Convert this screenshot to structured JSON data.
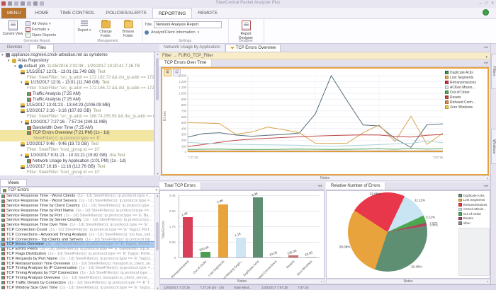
{
  "window": {
    "title": "SteelCentral Packet Analyzer Plus",
    "minimize": "–",
    "restore": "□",
    "close": "×"
  },
  "ribbon": {
    "tabs": [
      {
        "label": "MENU",
        "style": "menu"
      },
      {
        "label": "HOME"
      },
      {
        "label": "TIME CONTROL"
      },
      {
        "label": "POLICIES/ALERTS"
      },
      {
        "label": "REPORTING",
        "active": true
      },
      {
        "label": "REMOTE"
      }
    ],
    "generate_group": {
      "label": "Generate Report",
      "current_view": "Current View",
      "all_views": "All Views",
      "formats": "Formats",
      "open_reports": "Open Reports"
    },
    "management_group": {
      "label": "Management",
      "report": "Report",
      "change_folder": "Change Folder",
      "browse_folder": "Browse Folder"
    },
    "settings_group": {
      "label": "Settings",
      "title_label": "Title",
      "title_value": "Network Analysis Report",
      "analyst_info": "Analyst/Client Information"
    },
    "designer_group": {
      "label": "Designer",
      "report_designer": "Report Designer"
    }
  },
  "left_panel": {
    "tabs": [
      {
        "label": "Devices"
      },
      {
        "label": "Files",
        "active": true
      }
    ],
    "tree": [
      {
        "lvl": 0,
        "icon": "server",
        "exp": true,
        "text": "appliance.nsgreen.cmck-arbedian.net as symdemo"
      },
      {
        "lvl": 1,
        "icon": "repo",
        "exp": true,
        "text": "Atlas Repository"
      },
      {
        "lvl": 2,
        "icon": "job",
        "exp": true,
        "text": "default_job",
        "note": "11/15/2016 2:02:08 - 1/20/2017 10:20:41  7.26 TB"
      },
      {
        "lvl": 3,
        "icon": "trace",
        "text": "1/15/2017 12:01 - 13:01 (11.749 GB)",
        "note": "Test"
      },
      {
        "lvl": 4,
        "gray": true,
        "text": "Filter: SteelFilter: 'src_ip.addr == 172.162.72 && dst_ip.addr == 172.19.137.1' (src"
      },
      {
        "lvl": 3,
        "icon": "trace",
        "exp": true,
        "text": "1/15/2017 12:01 - 13:01 (11.748 GB)",
        "note": "Test"
      },
      {
        "lvl": 4,
        "gray": true,
        "text": "Filter: SteelFilter: 'src_ip.addr == 172.166.72 && dst_ip.addr == 172.033.137.1' (src"
      },
      {
        "lvl": 4,
        "icon": "chart",
        "text": "Traffic Analysis (7:25 AM)"
      },
      {
        "lvl": 4,
        "icon": "chart",
        "text": "Traffic Analysis (7:25 AM)"
      },
      {
        "lvl": 3,
        "icon": "trace",
        "text": "1/15/2017 13:41:23 - 13:44:23 (1006.09 MB)"
      },
      {
        "lvl": 3,
        "icon": "trace",
        "text": "1/20/2017 2:16 - 3:16 (107.83 GB)",
        "note": "Test"
      },
      {
        "lvl": 4,
        "gray": true,
        "text": "Filter: SteelFilter: 'src_ip.addr == 188.74.155.58 && dst_ip.addr == 84.25.34.7' (1 AM"
      },
      {
        "lvl": 3,
        "icon": "trace",
        "exp": true,
        "text": "1/20/2017 7:27:26 - 7:57:26 (249.11 MB)"
      },
      {
        "lvl": 4,
        "icon": "chart",
        "text": "Bandwidth Over Time (7:25 AM)"
      },
      {
        "lvl": 4,
        "icon": "chart",
        "text": "TCP Errors Overview (7:21 PM) (1s - 1d)",
        "hl": true
      },
      {
        "lvl": 5,
        "gray": true,
        "text": "SteelFilter(s): ip.protocol.type == 'E'",
        "hl": true
      },
      {
        "lvl": 3,
        "icon": "trace",
        "text": "1/20/2017 9:46 - 9:46 (19.73 GB)",
        "note": "Test"
      },
      {
        "lvl": 4,
        "gray": true,
        "text": "Filter: SteelFilter: 'host_group.id == 10'"
      },
      {
        "lvl": 3,
        "icon": "trace",
        "exp": true,
        "text": "1/20/2017 9:31:21 - 10:31:21 (15.82 GB)",
        "note": "Jira Test"
      },
      {
        "lvl": 4,
        "icon": "chart",
        "text": "Network Usage by Application (1:01 PM) (1s - 1d)"
      },
      {
        "lvl": 3,
        "icon": "trace",
        "text": "1/20/2017 10:16 - 11:16 (112.76 GB)",
        "note": "Test"
      },
      {
        "lvl": 4,
        "gray": true,
        "text": "Filter: SteelFilter: 'host_group.id == 10'"
      }
    ],
    "views": {
      "tab": "Views",
      "filter_value": "TCP Errors",
      "items": [
        {
          "name": "Service Response Time - Worst Clients",
          "detail": "(1s - 1d)  SteelFilter(s): ip.protocol.type == 'E'  Bandwi..."
        },
        {
          "name": "Service Response Time - Worst Servers",
          "detail": "(1s - 1d)  SteelFilter(s): ip.protocol.type == 'E'  Bandw..."
        },
        {
          "name": "Service Response Time by Client Country",
          "detail": "(1s - 1d)  SteelFilter(s): ip.protocol.type == 'E'  Band..."
        },
        {
          "name": "Service Response Time by Port Name",
          "detail": "(1s - 1d)  SteelFilter(s): ip.protocol.type == 'E'  Bandwidt..."
        },
        {
          "name": "Service Response Time by Port",
          "detail": "(1s - 1d)  SteelFilter(s): ip.protocol.type == 'E'  Bandwidth..."
        },
        {
          "name": "Service Response Time by Server Country",
          "detail": "(1s - 1d)  SteelFilter(s): ip.protocol.type == 'E'  Ban..."
        },
        {
          "name": "Service Response Time Over Time",
          "detail": "(1s - 1d)  SteelFilter(s): ip.protocol.type == 'E'  Bandwidth..."
        },
        {
          "name": "TCP Connection Count",
          "detail": "(1s - 1d)  SteelFilter(s): ip.protocol.type == 'E'  Tag(s): Performance..."
        },
        {
          "name": "TCP Connections - Advanced Timing Analysis",
          "detail": "(1s - 1d)  SteelFilter(s): tcp.has_valid_round_trip..."
        },
        {
          "name": "TCP Connections - Top Clients and Servers",
          "detail": "(1s - 1d)  SteelFilter(s): ip.protocol.type == 'E'  Ta..."
        },
        {
          "name": "TCP Errors Overview",
          "detail": "(1s - 1d)  SteelFilter(s): ip.protocol.type == 'E'  Tag(s): Performance an...",
          "selected": true
        },
        {
          "name": "TCP Errors Peers",
          "detail": "(1s - 1d)  SteelFilter(s): ip.protocol.type == 'E'  Bandwidth: tcp.is_error ==..."
        },
        {
          "name": "TCP Flags Distribution",
          "detail": "(1s - 1d)  SteelFilter(s): ip.protocol.type == 'E'  Tag(s): Performance a..."
        },
        {
          "name": "TCP Requests by Port Name",
          "detail": "(1s - 1d)  SteelFilter(s): ip.protocol.type == 'E'  Tag(s): Perform..."
        },
        {
          "name": "TCP Retransmission Time Overview",
          "detail": "(1s - 1d)  SteelFilter(s): transport.is_client_server_proto..."
        },
        {
          "name": "TCP Timing Analysis by IP Conversation",
          "detail": "(1s - 1d)  SteelFilter(s): ip.protocol.type == 'E'  Tag(s)..."
        },
        {
          "name": "TCP Timing Analysis by TCP Connection",
          "detail": "(1s - 1d)  SteelFilter(s): ip.protocol.type == 'E'  Tag(s)..."
        },
        {
          "name": "TCP Timing Analysis Overview",
          "detail": "(1s - 1d)  SteelFilter(s): transport.is_client_server_proto == '1'..."
        },
        {
          "name": "TCP Traffic Details by Connection",
          "detail": "(1s - 1d)  SteelFilter(s): ip.protocol.type == 'E'  Tag(s): Perf..."
        },
        {
          "name": "TCP Window Size Over Time",
          "detail": "(1s - 1d)  SteelFilter(s): ip.protocol.type == 'E'  Tag(s): Perform..."
        }
      ]
    }
  },
  "workspace": {
    "doc_tabs": [
      {
        "label": "Network Usage by Application"
      },
      {
        "label": "TCP Errors Overview",
        "active": true,
        "icon": "funnel"
      }
    ],
    "filter_bar": {
      "text": "Filter → FURO_TCP_Filter"
    },
    "notes_label": "Notes",
    "right_rail": [
      "Filters",
      "Windows"
    ],
    "status_parts": [
      "1/20/2017 7:27:25",
      "7:27:25  (4s - 1h)",
      "Total Wind...",
      "1/20/2017 7:57:25",
      "7:57:25"
    ]
  },
  "chart_data": [
    {
      "type": "line",
      "title": "TCP Errors Over Time",
      "xlabel": "",
      "ylabel": "Errors",
      "ylim": [
        0,
        1300
      ],
      "yticks": [
        "0",
        "100",
        "200",
        "300",
        "400",
        "500",
        "600",
        "700",
        "800",
        "900",
        "1,000",
        "1,100",
        "1,200",
        "1,300"
      ],
      "xticks": [
        "7:27:26",
        "7:57:26"
      ],
      "grid": true,
      "legend_position": "right",
      "series": [
        {
          "name": "Duplicate Acks",
          "color": "#56707b",
          "chip": "#2e8b3d",
          "values": [
            255,
            315,
            330,
            290,
            270,
            285,
            300,
            325,
            650,
            1300,
            870,
            460,
            445,
            230,
            80,
            465,
            480
          ]
        },
        {
          "name": "Lost Segments",
          "color": "#d9a24a",
          "chip": "#e8a33d",
          "values": [
            500,
            495,
            485,
            305,
            340,
            425,
            380,
            330,
            150,
            148,
            152,
            330,
            460,
            180,
            610,
            130,
            320
          ]
        },
        {
          "name": "Retransmissions",
          "color": "#c04545",
          "chip": "#cc2233",
          "values": [
            95,
            130,
            165,
            200,
            220,
            235,
            248,
            260,
            272,
            282,
            288,
            292,
            290,
            268,
            255,
            285,
            300
          ]
        },
        {
          "name": "ACKed Missin...",
          "color": "#a8d4dc",
          "chip": "#cfe9f5",
          "values": [
            165,
            150,
            140,
            132,
            128,
            124,
            120,
            115,
            105,
            100,
            108,
            118,
            128,
            138,
            150,
            185,
            160
          ]
        },
        {
          "name": "Out of Order",
          "color": "#4a9e4f",
          "chip": "#3fa04a",
          "values": [
            45,
            48,
            50,
            46,
            44,
            45,
            48,
            52,
            48,
            45,
            48,
            52,
            55,
            48,
            60,
            52,
            55
          ]
        },
        {
          "name": "Resets",
          "color": "#b03a3a",
          "chip": "#c03a3a",
          "values": [
            18,
            18,
            17,
            18,
            18,
            17,
            18,
            18,
            17,
            18,
            18,
            17,
            18,
            18,
            17,
            18,
            18
          ]
        },
        {
          "name": "Refused Conn...",
          "color": "#e07b39",
          "chip": "#e07b39",
          "values": [
            10,
            10,
            10,
            10,
            10,
            10,
            10,
            10,
            10,
            10,
            10,
            10,
            10,
            10,
            10,
            10,
            10
          ]
        },
        {
          "name": "Zero Windows",
          "color": "#e3c53a",
          "chip": "#e6c832",
          "values": [
            6,
            6,
            6,
            6,
            6,
            6,
            6,
            6,
            6,
            6,
            6,
            6,
            6,
            6,
            6,
            6,
            6
          ]
        }
      ]
    },
    {
      "type": "bar",
      "title": "Total TCP Errors",
      "xlabel": "",
      "ylabel": "Total Errors",
      "ylim": [
        0,
        3400
      ],
      "yticks": [
        "0",
        "0.8K",
        "1.7K",
        "2.5K",
        "3.4K"
      ],
      "categories": [
        "Retransmissions",
        "Out of Order",
        "Lost Segments",
        "ACKed Missing Segm...",
        "Duplicate Acks",
        "Refused Connections",
        "Resets",
        "Zero Windows"
      ],
      "values": [
        2200,
        320,
        2900,
        1100,
        3300,
        24,
        135,
        26
      ],
      "value_labels": [
        "2.2K",
        "320.00",
        "2.9K",
        "1.1K",
        "3.3K",
        "24.00",
        "135.00",
        "26.00"
      ],
      "colors": [
        "#d8405a",
        "#4a9e4f",
        "#e8a33d",
        "#cfe6f2",
        "#5f8f72",
        "#c9c9c9",
        "#c97070",
        "#d9d9d9"
      ]
    },
    {
      "type": "pie",
      "title": "Relative Number of Errors",
      "start_angle": -57,
      "slices": [
        {
          "label": "Retransmissions",
          "pct": 22.96,
          "pct_label": "22.96%",
          "color": "#e8374a"
        },
        {
          "label": "ACKed Missin...",
          "pct": 11.11,
          "pct_label": "11.11%",
          "color": "#c9e4f2"
        },
        {
          "label": "Out of Order",
          "pct": 3.12,
          "pct_label": "3.12%",
          "color": "#4aa84f"
        },
        {
          "label": "Resets",
          "pct": 1.3,
          "pct_label": "1.30%",
          "color": "#a84a5a"
        },
        {
          "label": "other",
          "pct": 0.25,
          "pct_label": "0.25%",
          "color": "#8a8a8a"
        },
        {
          "label": "Duplicate Acks",
          "pct": 32.49,
          "pct_label": "32.49%",
          "color": "#5f8f72"
        },
        {
          "label": "Lost Segments",
          "pct": 29.09,
          "pct_label": "29.09%",
          "color": "#e8a33d"
        }
      ],
      "legend": [
        {
          "label": "Duplicate Acks",
          "color": "#5f8f72"
        },
        {
          "label": "Lost Segments",
          "color": "#e8a33d"
        },
        {
          "label": "Retransmissions",
          "color": "#e8374a"
        },
        {
          "label": "ACKed Missin...",
          "color": "#c9e4f2"
        },
        {
          "label": "Out of Order",
          "color": "#4aa84f"
        },
        {
          "label": "Resets",
          "color": "#a84a5a"
        },
        {
          "label": "other",
          "color": "#8a8a8a"
        }
      ]
    }
  ]
}
